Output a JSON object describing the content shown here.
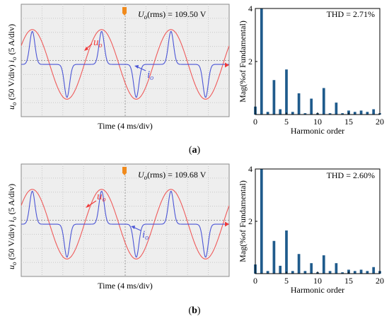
{
  "panels": [
    {
      "label": "(a)",
      "label_letter": "a",
      "rms_var": "U",
      "rms_sub": "o",
      "rms_text": "(rms) = 109.50 V",
      "u_label": "u",
      "u_sub": "o",
      "i_label": "i",
      "i_sub": "o",
      "ylabel_u": "u",
      "ylabel_u_unit": "(50 V/div)",
      "ylabel_i": "i",
      "ylabel_i_unit": "(5 A/div)",
      "xlabel": "Time (4 ms/div)",
      "thd": "THD = 2.71%"
    },
    {
      "label": "(b)",
      "label_letter": "b",
      "rms_var": "U",
      "rms_sub": "o",
      "rms_text": "(rms) = 109.68 V",
      "u_label": "u",
      "u_sub": "o",
      "i_label": "i",
      "i_sub": "o",
      "ylabel_u": "u",
      "ylabel_u_unit": "(50 V/div)",
      "ylabel_i": "i",
      "ylabel_i_unit": "(5 A/div)",
      "xlabel": "Time (4 ms/div)",
      "thd": "THD = 2.60%"
    }
  ],
  "chart_data": [
    {
      "type": "line",
      "title": "",
      "xlabel": "Time (4 ms/div)",
      "ylabel": "u_o (50 V/div) i_o (5 A/div)",
      "series": [
        {
          "name": "u_o",
          "shape": "sine",
          "cycles": 3,
          "rms_V": 109.5
        },
        {
          "name": "i_o",
          "shape": "pulse",
          "cycles": 3
        }
      ]
    },
    {
      "type": "bar",
      "title": "",
      "xlabel": "Harmonic order",
      "ylabel": "Mag(%of Fundamental)",
      "xlim": [
        0,
        20
      ],
      "ylim": [
        0,
        4
      ],
      "xticks": [
        0,
        5,
        10,
        15,
        20
      ],
      "yticks": [
        2,
        4
      ],
      "x": [
        0,
        1,
        2,
        3,
        4,
        5,
        6,
        7,
        8,
        9,
        10,
        11,
        12,
        13,
        14,
        15,
        16,
        17,
        18,
        19,
        20
      ],
      "values": [
        0.3,
        4.0,
        0.1,
        1.3,
        0.2,
        1.7,
        0.1,
        0.8,
        0.05,
        0.6,
        0.05,
        1.0,
        0.05,
        0.45,
        0.05,
        0.15,
        0.1,
        0.15,
        0.1,
        0.2,
        0.05
      ],
      "annotation": "THD = 2.71%"
    },
    {
      "type": "line",
      "title": "",
      "xlabel": "Time (4 ms/div)",
      "ylabel": "u_o (50 V/div) i_o (5 A/div)",
      "series": [
        {
          "name": "u_o",
          "shape": "sine",
          "cycles": 3,
          "rms_V": 109.68
        },
        {
          "name": "i_o",
          "shape": "pulse",
          "cycles": 3
        }
      ]
    },
    {
      "type": "bar",
      "title": "",
      "xlabel": "Harmonic order",
      "ylabel": "Mag(%of Fundamental)",
      "xlim": [
        0,
        20
      ],
      "ylim": [
        0,
        4
      ],
      "xticks": [
        0,
        5,
        10,
        15,
        20
      ],
      "yticks": [
        2,
        4
      ],
      "x": [
        0,
        1,
        2,
        3,
        4,
        5,
        6,
        7,
        8,
        9,
        10,
        11,
        12,
        13,
        14,
        15,
        16,
        17,
        18,
        19,
        20
      ],
      "values": [
        0.35,
        4.0,
        0.1,
        1.25,
        0.3,
        1.65,
        0.1,
        0.75,
        0.1,
        0.4,
        0.05,
        0.7,
        0.1,
        0.4,
        0.05,
        0.15,
        0.1,
        0.15,
        0.1,
        0.25,
        0.1
      ],
      "annotation": "THD = 2.60%"
    }
  ]
}
